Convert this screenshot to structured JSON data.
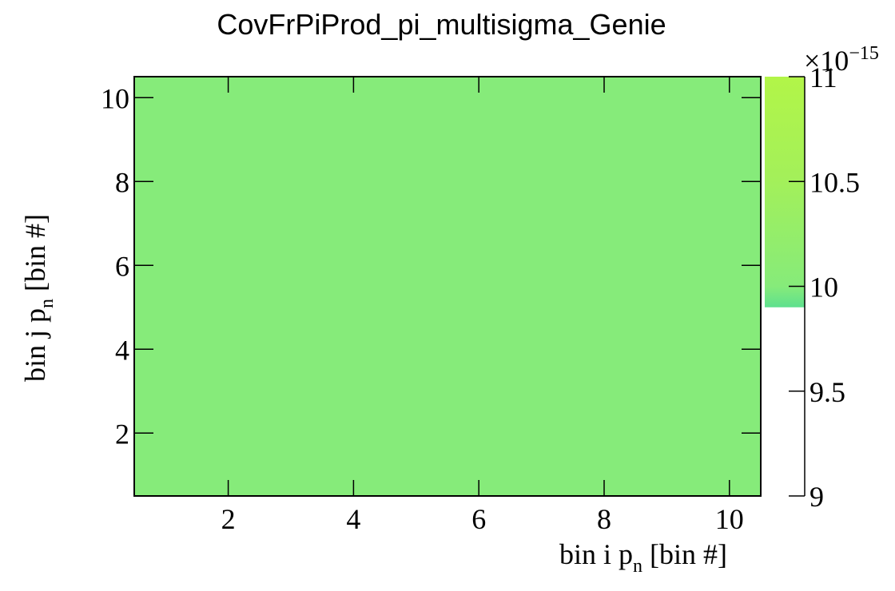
{
  "chart_data": {
    "type": "heatmap",
    "title": "CovFrPiProd_pi_multisigma_Genie",
    "xlabel": {
      "main": "bin i p",
      "sub": "n",
      "tail": " [bin #]"
    },
    "ylabel": {
      "main": "bin j p",
      "sub": "n",
      "tail": " [bin #]"
    },
    "xlim": [
      0.5,
      10.5
    ],
    "ylim": [
      0.5,
      10.5
    ],
    "x_ticks": [
      2,
      4,
      6,
      8,
      10
    ],
    "y_ticks": [
      2,
      4,
      6,
      8,
      10
    ],
    "x_tick_labels": [
      "2",
      "4",
      "6",
      "8",
      "10"
    ],
    "y_tick_labels": [
      "2",
      "4",
      "6",
      "8",
      "10"
    ],
    "cell_value": 1e-14,
    "cell_color": "#86eb7a",
    "colorbar": {
      "range": [
        9e-15,
        1.1e-14
      ],
      "ticks": [
        9,
        9.5,
        10,
        10.5,
        11
      ],
      "tick_labels": [
        "9",
        "9.5",
        "10",
        "10.5",
        "11"
      ],
      "filled_range": [
        9.9,
        11
      ],
      "exponent": {
        "base": "×10",
        "power": "−15"
      }
    },
    "grid": false,
    "legend": "none"
  }
}
